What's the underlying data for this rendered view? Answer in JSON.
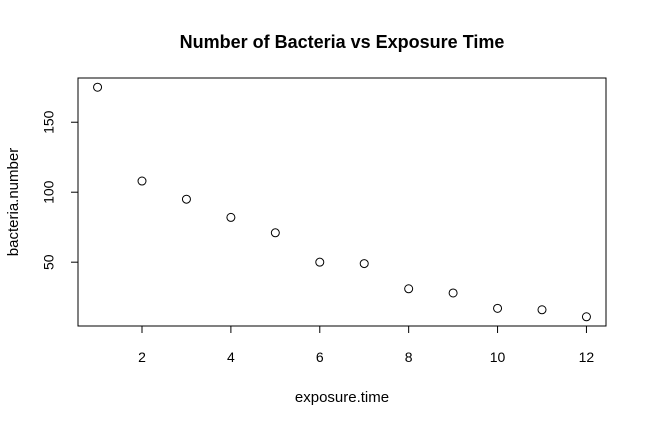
{
  "chart_data": {
    "type": "scatter",
    "title": "Number of Bacteria vs Exposure Time",
    "xlabel": "exposure.time",
    "ylabel": "bacteria.number",
    "x": [
      1,
      2,
      3,
      4,
      5,
      6,
      7,
      8,
      9,
      10,
      11,
      12
    ],
    "y": [
      175,
      108,
      95,
      82,
      71,
      50,
      49,
      31,
      28,
      17,
      16,
      11
    ],
    "xlim": [
      0.56,
      12.44
    ],
    "ylim": [
      4.4,
      181.6
    ],
    "x_ticks": [
      2,
      4,
      6,
      8,
      10,
      12
    ],
    "y_ticks": [
      50,
      100,
      150
    ],
    "x_tick_labels": [
      "2",
      "4",
      "6",
      "8",
      "10",
      "12"
    ],
    "y_tick_labels": [
      "50",
      "100",
      "150"
    ],
    "marker": "open-circle",
    "grid": false,
    "legend": "none",
    "colors": {
      "points": "#000000",
      "axes": "#000000",
      "background": "#ffffff"
    }
  }
}
